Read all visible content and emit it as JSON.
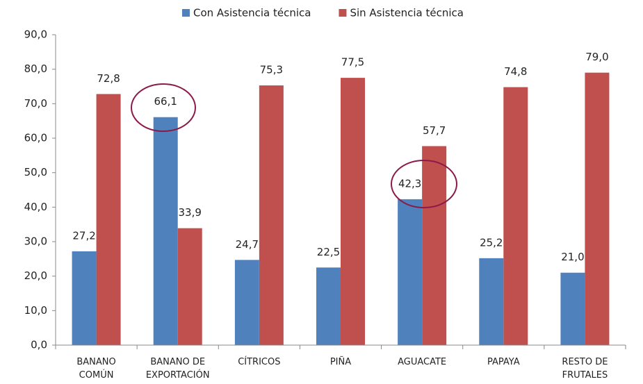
{
  "chart_data": {
    "type": "bar",
    "categories": [
      "BANANO COMÚN",
      "BANANO DE EXPORTACIÓN",
      "CÍTRICOS",
      "PIÑA",
      "AGUACATE",
      "PAPAYA",
      "RESTO DE FRUTALES"
    ],
    "series": [
      {
        "name": "Con Asistencia técnica",
        "color": "#4f81bd",
        "values": [
          27.2,
          66.1,
          24.7,
          22.5,
          42.3,
          25.2,
          21.0
        ],
        "value_labels": [
          "27,2",
          "66,1",
          "24,7",
          "22,5",
          "42,3",
          "25,2",
          "21,0"
        ]
      },
      {
        "name": "Sin Asistencia técnica",
        "color": "#c0504d",
        "values": [
          72.8,
          33.9,
          75.3,
          77.5,
          57.7,
          74.8,
          79.0
        ],
        "value_labels": [
          "72,8",
          "33,9",
          "75,3",
          "77,5",
          "57,7",
          "74,8",
          "79,0"
        ]
      }
    ],
    "ylim": [
      0,
      90
    ],
    "yticks": [
      {
        "value": 0,
        "label": "0,0"
      },
      {
        "value": 10,
        "label": "10,0"
      },
      {
        "value": 20,
        "label": "20,0"
      },
      {
        "value": 30,
        "label": "30,0"
      },
      {
        "value": 40,
        "label": "40,0"
      },
      {
        "value": 50,
        "label": "50,0"
      },
      {
        "value": 60,
        "label": "60,0"
      },
      {
        "value": 70,
        "label": "70,0"
      },
      {
        "value": 80,
        "label": "80,0"
      },
      {
        "value": 90,
        "label": "90,0"
      }
    ],
    "legend": "top",
    "grid": false
  }
}
